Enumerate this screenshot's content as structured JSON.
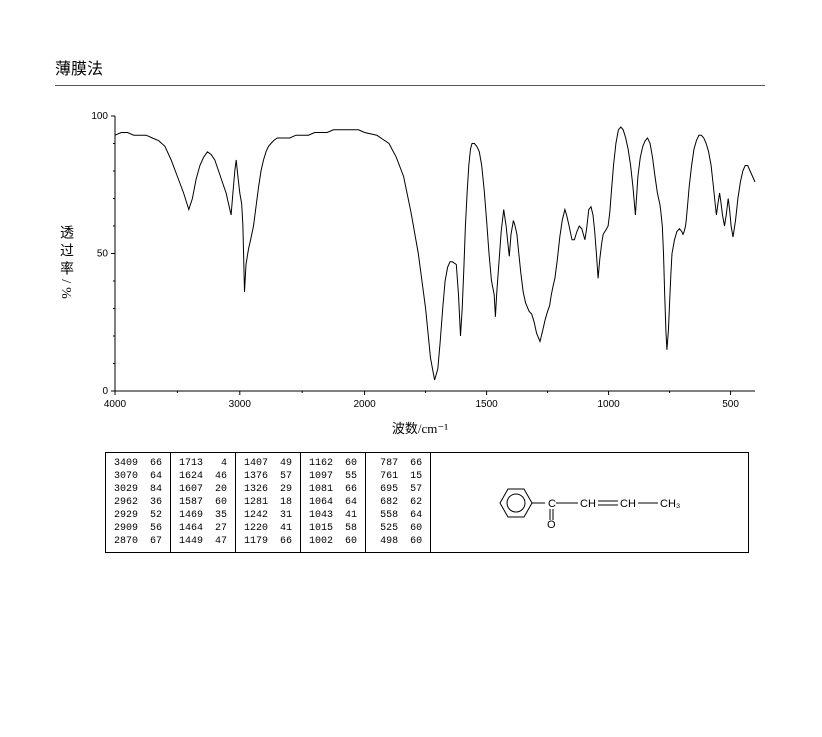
{
  "title": "薄膜法",
  "ylabel": "透过率/%",
  "xlabel": "波数/cm⁻¹",
  "chart": {
    "type": "line",
    "xlim": [
      4000,
      400
    ],
    "ylim": [
      0,
      100
    ],
    "xticks": [
      4000,
      3000,
      2000,
      1500,
      1000,
      500
    ],
    "yticks": [
      0,
      50,
      100
    ],
    "xtick_labels": [
      "4000",
      "3000",
      "2000",
      "1500",
      "1000",
      "500"
    ],
    "ytick_labels": [
      "0",
      "50",
      "100"
    ],
    "line_color": "#000000",
    "background_color": "#ffffff",
    "axis_color": "#000000",
    "tick_fontsize": 10,
    "points": [
      [
        4000,
        93
      ],
      [
        3950,
        94
      ],
      [
        3900,
        94
      ],
      [
        3850,
        93
      ],
      [
        3800,
        93
      ],
      [
        3750,
        93
      ],
      [
        3700,
        92
      ],
      [
        3650,
        91
      ],
      [
        3600,
        89
      ],
      [
        3550,
        84
      ],
      [
        3500,
        78
      ],
      [
        3450,
        72
      ],
      [
        3409,
        66
      ],
      [
        3380,
        70
      ],
      [
        3350,
        77
      ],
      [
        3320,
        82
      ],
      [
        3290,
        85
      ],
      [
        3260,
        87
      ],
      [
        3230,
        86
      ],
      [
        3200,
        84
      ],
      [
        3170,
        80
      ],
      [
        3140,
        76
      ],
      [
        3110,
        72
      ],
      [
        3090,
        68
      ],
      [
        3070,
        64
      ],
      [
        3055,
        72
      ],
      [
        3040,
        80
      ],
      [
        3029,
        84
      ],
      [
        3015,
        78
      ],
      [
        3000,
        72
      ],
      [
        2985,
        68
      ],
      [
        2975,
        60
      ],
      [
        2962,
        36
      ],
      [
        2950,
        46
      ],
      [
        2940,
        49
      ],
      [
        2929,
        52
      ],
      [
        2918,
        54
      ],
      [
        2909,
        56
      ],
      [
        2890,
        60
      ],
      [
        2870,
        67
      ],
      [
        2850,
        74
      ],
      [
        2830,
        80
      ],
      [
        2810,
        84
      ],
      [
        2790,
        87
      ],
      [
        2770,
        89
      ],
      [
        2750,
        90
      ],
      [
        2730,
        91
      ],
      [
        2700,
        92
      ],
      [
        2650,
        92
      ],
      [
        2600,
        92
      ],
      [
        2550,
        93
      ],
      [
        2500,
        93
      ],
      [
        2450,
        93
      ],
      [
        2400,
        94
      ],
      [
        2350,
        94
      ],
      [
        2300,
        94
      ],
      [
        2250,
        95
      ],
      [
        2200,
        95
      ],
      [
        2150,
        95
      ],
      [
        2100,
        95
      ],
      [
        2050,
        95
      ],
      [
        2000,
        94
      ],
      [
        1950,
        93
      ],
      [
        1900,
        90
      ],
      [
        1870,
        85
      ],
      [
        1840,
        78
      ],
      [
        1810,
        65
      ],
      [
        1780,
        50
      ],
      [
        1750,
        30
      ],
      [
        1730,
        12
      ],
      [
        1713,
        4
      ],
      [
        1700,
        8
      ],
      [
        1690,
        18
      ],
      [
        1680,
        30
      ],
      [
        1670,
        40
      ],
      [
        1660,
        45
      ],
      [
        1650,
        47
      ],
      [
        1640,
        47
      ],
      [
        1624,
        46
      ],
      [
        1615,
        35
      ],
      [
        1607,
        20
      ],
      [
        1600,
        30
      ],
      [
        1593,
        45
      ],
      [
        1587,
        60
      ],
      [
        1580,
        72
      ],
      [
        1573,
        82
      ],
      [
        1566,
        88
      ],
      [
        1560,
        90
      ],
      [
        1550,
        90
      ],
      [
        1540,
        89
      ],
      [
        1530,
        87
      ],
      [
        1520,
        82
      ],
      [
        1510,
        73
      ],
      [
        1500,
        62
      ],
      [
        1490,
        50
      ],
      [
        1480,
        40
      ],
      [
        1469,
        35
      ],
      [
        1464,
        27
      ],
      [
        1458,
        36
      ],
      [
        1449,
        47
      ],
      [
        1440,
        58
      ],
      [
        1430,
        66
      ],
      [
        1420,
        60
      ],
      [
        1413,
        54
      ],
      [
        1407,
        49
      ],
      [
        1400,
        57
      ],
      [
        1390,
        62
      ],
      [
        1383,
        60
      ],
      [
        1376,
        57
      ],
      [
        1368,
        50
      ],
      [
        1360,
        43
      ],
      [
        1350,
        36
      ],
      [
        1340,
        32
      ],
      [
        1326,
        29
      ],
      [
        1315,
        28
      ],
      [
        1305,
        25
      ],
      [
        1295,
        21
      ],
      [
        1281,
        18
      ],
      [
        1270,
        22
      ],
      [
        1260,
        26
      ],
      [
        1250,
        29
      ],
      [
        1242,
        31
      ],
      [
        1235,
        35
      ],
      [
        1228,
        38
      ],
      [
        1220,
        41
      ],
      [
        1210,
        48
      ],
      [
        1200,
        56
      ],
      [
        1190,
        62
      ],
      [
        1179,
        66
      ],
      [
        1172,
        64
      ],
      [
        1162,
        60
      ],
      [
        1150,
        55
      ],
      [
        1140,
        55
      ],
      [
        1130,
        58
      ],
      [
        1120,
        60
      ],
      [
        1110,
        59
      ],
      [
        1097,
        55
      ],
      [
        1090,
        59
      ],
      [
        1081,
        66
      ],
      [
        1072,
        67
      ],
      [
        1064,
        64
      ],
      [
        1057,
        58
      ],
      [
        1050,
        50
      ],
      [
        1043,
        41
      ],
      [
        1036,
        48
      ],
      [
        1028,
        54
      ],
      [
        1022,
        57
      ],
      [
        1015,
        58
      ],
      [
        1008,
        59
      ],
      [
        1002,
        60
      ],
      [
        995,
        65
      ],
      [
        988,
        73
      ],
      [
        980,
        82
      ],
      [
        970,
        90
      ],
      [
        960,
        95
      ],
      [
        950,
        96
      ],
      [
        940,
        95
      ],
      [
        930,
        92
      ],
      [
        920,
        88
      ],
      [
        910,
        82
      ],
      [
        900,
        74
      ],
      [
        890,
        64
      ],
      [
        880,
        78
      ],
      [
        870,
        85
      ],
      [
        860,
        89
      ],
      [
        850,
        91
      ],
      [
        840,
        92
      ],
      [
        830,
        90
      ],
      [
        820,
        85
      ],
      [
        810,
        78
      ],
      [
        800,
        72
      ],
      [
        790,
        68
      ],
      [
        787,
        66
      ],
      [
        780,
        60
      ],
      [
        775,
        50
      ],
      [
        770,
        35
      ],
      [
        765,
        22
      ],
      [
        761,
        15
      ],
      [
        755,
        22
      ],
      [
        750,
        32
      ],
      [
        745,
        42
      ],
      [
        740,
        50
      ],
      [
        730,
        55
      ],
      [
        720,
        58
      ],
      [
        710,
        59
      ],
      [
        700,
        58
      ],
      [
        695,
        57
      ],
      [
        690,
        58
      ],
      [
        685,
        60
      ],
      [
        682,
        62
      ],
      [
        676,
        68
      ],
      [
        670,
        74
      ],
      [
        660,
        82
      ],
      [
        650,
        88
      ],
      [
        640,
        91
      ],
      [
        630,
        93
      ],
      [
        620,
        93
      ],
      [
        610,
        92
      ],
      [
        600,
        90
      ],
      [
        590,
        87
      ],
      [
        580,
        82
      ],
      [
        570,
        74
      ],
      [
        563,
        68
      ],
      [
        558,
        64
      ],
      [
        552,
        68
      ],
      [
        545,
        72
      ],
      [
        540,
        69
      ],
      [
        533,
        64
      ],
      [
        525,
        60
      ],
      [
        518,
        64
      ],
      [
        510,
        70
      ],
      [
        504,
        66
      ],
      [
        498,
        60
      ],
      [
        490,
        56
      ],
      [
        480,
        62
      ],
      [
        470,
        70
      ],
      [
        460,
        76
      ],
      [
        450,
        80
      ],
      [
        440,
        82
      ],
      [
        430,
        82
      ],
      [
        420,
        80
      ],
      [
        410,
        78
      ],
      [
        400,
        76
      ]
    ]
  },
  "peak_blocks": [
    [
      [
        3409,
        66
      ],
      [
        3070,
        64
      ],
      [
        3029,
        84
      ],
      [
        2962,
        36
      ],
      [
        2929,
        52
      ],
      [
        2909,
        56
      ],
      [
        2870,
        67
      ]
    ],
    [
      [
        1713,
        4
      ],
      [
        1624,
        46
      ],
      [
        1607,
        20
      ],
      [
        1587,
        60
      ],
      [
        1469,
        35
      ],
      [
        1464,
        27
      ],
      [
        1449,
        47
      ]
    ],
    [
      [
        1407,
        49
      ],
      [
        1376,
        57
      ],
      [
        1326,
        29
      ],
      [
        1281,
        18
      ],
      [
        1242,
        31
      ],
      [
        1220,
        41
      ],
      [
        1179,
        66
      ]
    ],
    [
      [
        1162,
        60
      ],
      [
        1097,
        55
      ],
      [
        1081,
        66
      ],
      [
        1064,
        64
      ],
      [
        1043,
        41
      ],
      [
        1015,
        58
      ],
      [
        1002,
        60
      ]
    ],
    [
      [
        787,
        66
      ],
      [
        761,
        15
      ],
      [
        695,
        57
      ],
      [
        682,
        62
      ],
      [
        558,
        64
      ],
      [
        525,
        60
      ],
      [
        498,
        60
      ]
    ]
  ],
  "molecule": {
    "ring_hex_r": 14,
    "atoms_text": [
      "C",
      "O",
      "CH",
      "CH",
      "CH₃"
    ],
    "dbl_bond": true
  }
}
